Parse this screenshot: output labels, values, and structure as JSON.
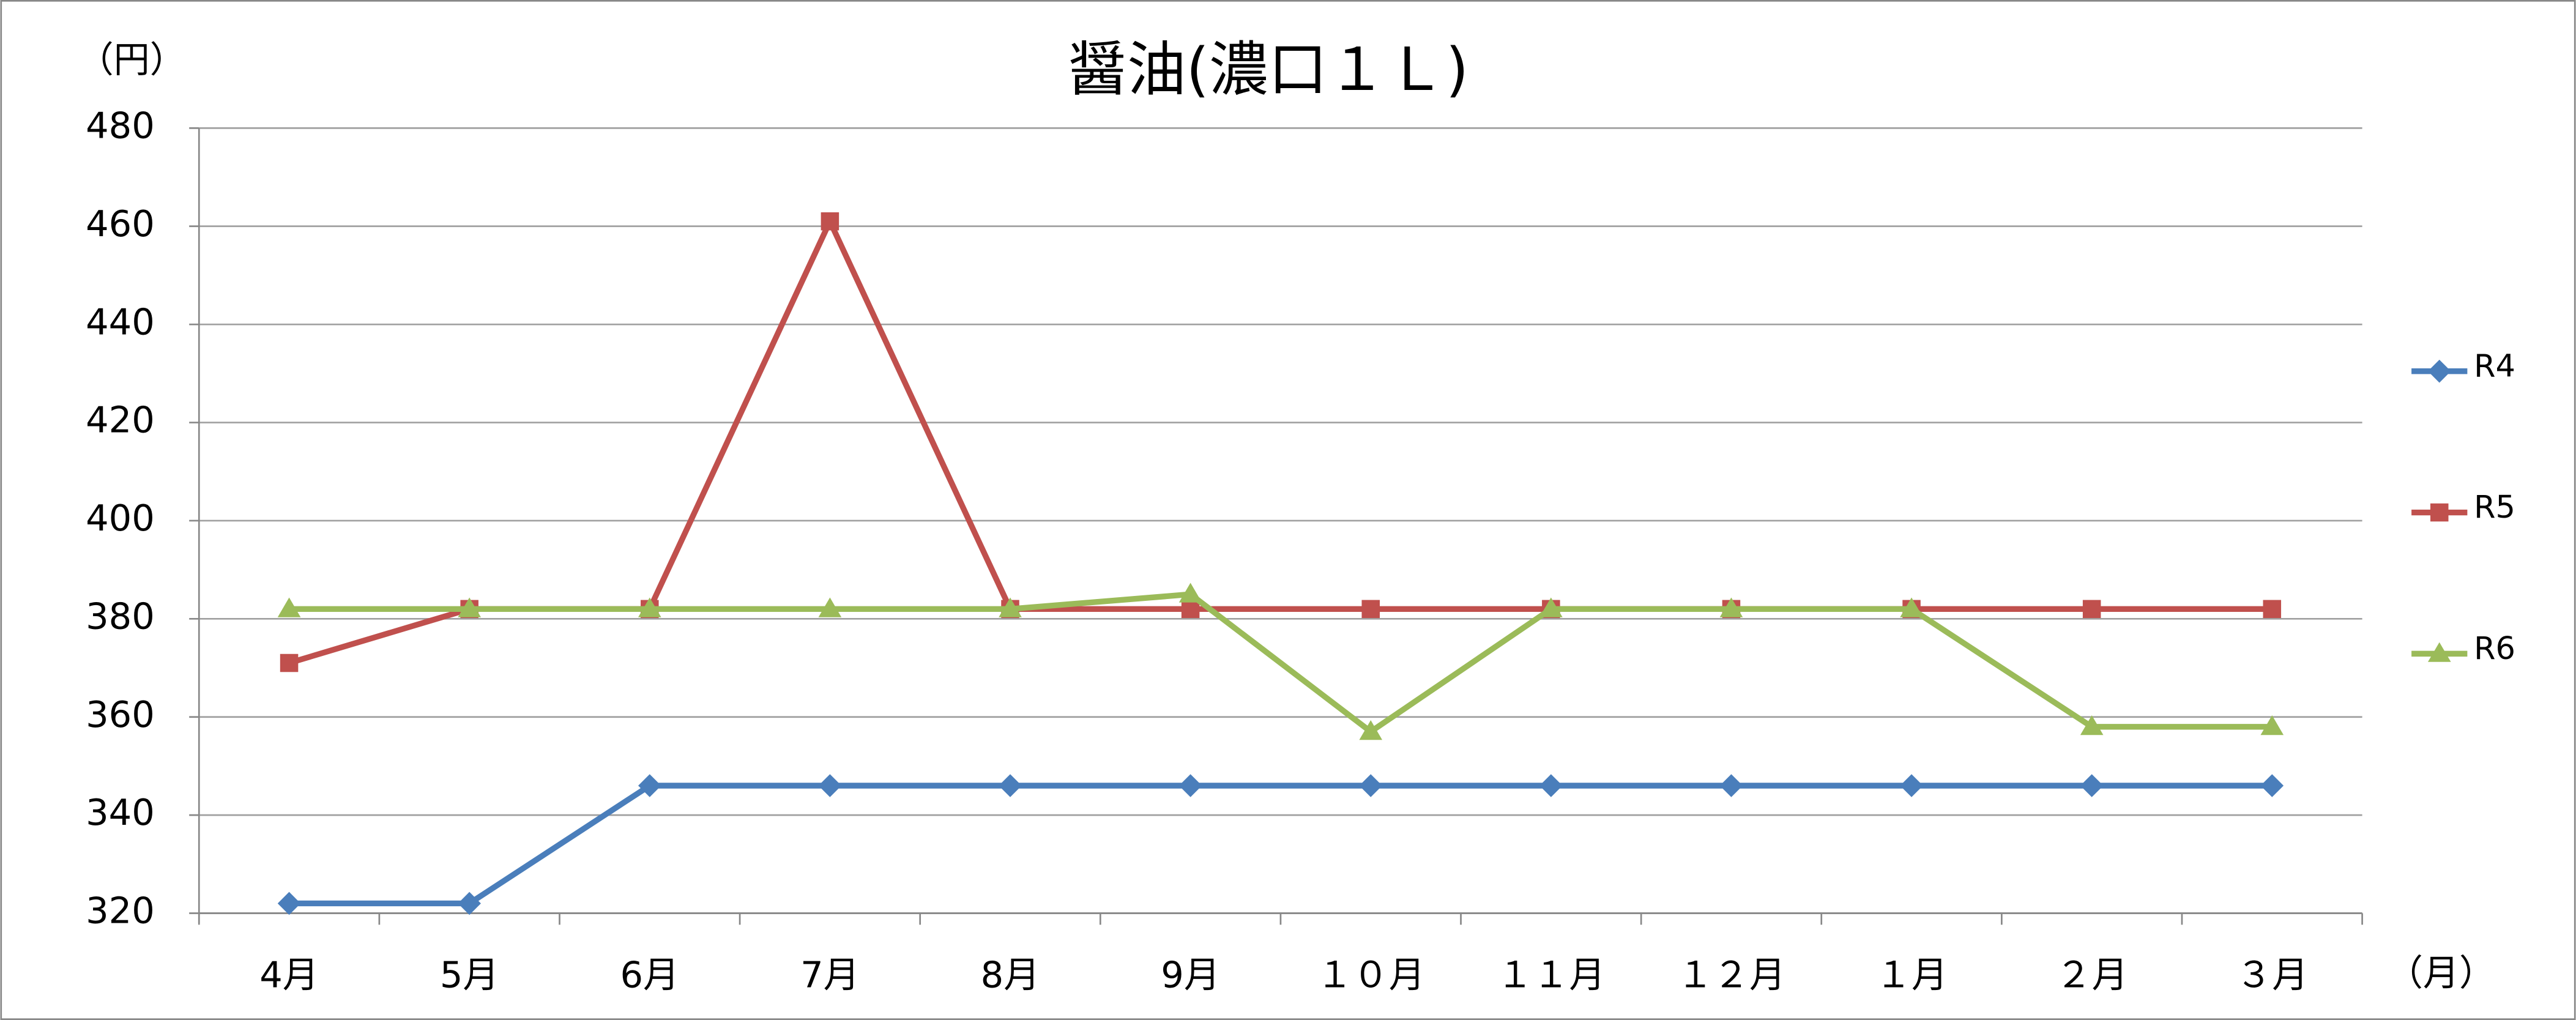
{
  "chart_data": {
    "type": "line",
    "title": "醤油(濃口１Ｌ)",
    "y_label": "（円）",
    "x_label": "（月）",
    "categories": [
      "4月",
      "5月",
      "6月",
      "7月",
      "8月",
      "9月",
      "１０月",
      "１１月",
      "１２月",
      "１月",
      "２月",
      "３月"
    ],
    "series": [
      {
        "name": "R4",
        "color": "#4a7ebb",
        "marker": "diamond",
        "values": [
          322,
          322,
          346,
          346,
          346,
          346,
          346,
          346,
          346,
          346,
          346,
          346
        ]
      },
      {
        "name": "R5",
        "color": "#c0504d",
        "marker": "square",
        "values": [
          371,
          382,
          382,
          461,
          382,
          382,
          382,
          382,
          382,
          382,
          382,
          382
        ]
      },
      {
        "name": "R6",
        "color": "#9bbb59",
        "marker": "triangle",
        "values": [
          382,
          382,
          382,
          382,
          382,
          385,
          357,
          382,
          382,
          382,
          358,
          358
        ]
      }
    ],
    "ylim": [
      320,
      480
    ],
    "yticks": [
      320,
      340,
      360,
      380,
      400,
      420,
      440,
      460,
      480
    ],
    "grid": true,
    "legend": "right"
  }
}
